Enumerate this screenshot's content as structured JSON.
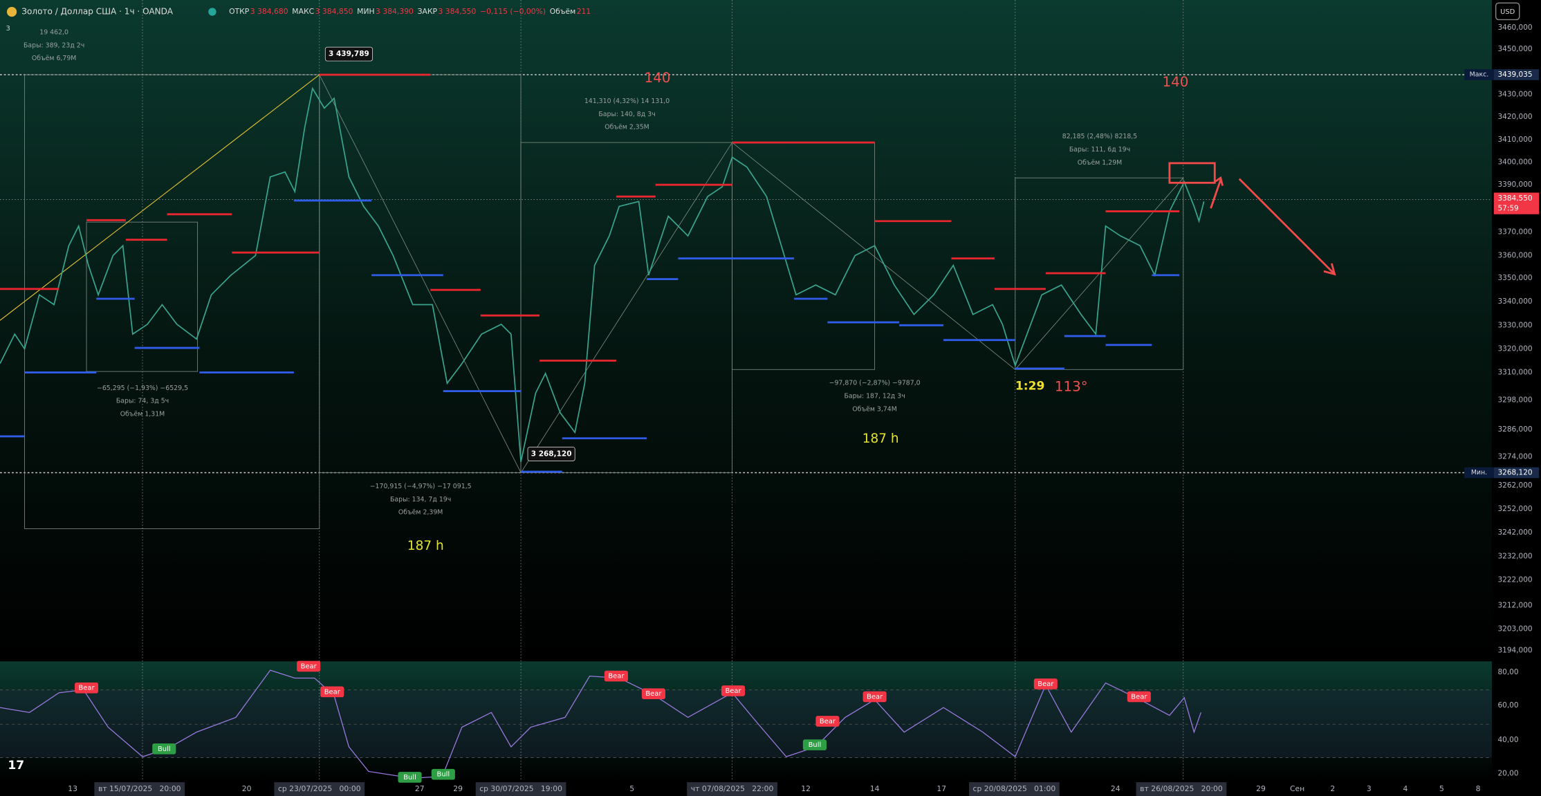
{
  "header": {
    "symbol": "Золото / Доллар США · 1ч · OANDA",
    "ohlc": [
      {
        "label": "ОТКР",
        "value": "3 384,680"
      },
      {
        "label": "МАКС",
        "value": "3 384,850"
      },
      {
        "label": "МИН",
        "value": "3 384,390"
      },
      {
        "label": "ЗАКР",
        "value": "3 384,550"
      }
    ],
    "change": "−0,115 (−0,00%)",
    "volume_label": "Объём",
    "volume": "211",
    "indicators_count": "3"
  },
  "currency": "USD",
  "price_axis": [
    "3460,000",
    "3450,000",
    "3430,000",
    "3420,000",
    "3410,000",
    "3400,000",
    "3390,000",
    "3370,000",
    "3360,000",
    "3350,000",
    "3340,000",
    "3330,000",
    "3320,000",
    "3310,000",
    "3298,000",
    "3286,000",
    "3274,000",
    "3262,000",
    "3252,000",
    "3242,000",
    "3232,000",
    "3222,000",
    "3212,000",
    "3203,000",
    "3194,000"
  ],
  "price_badges": {
    "max_label": "Макс.",
    "max": "3439,035",
    "min_label": "Мин.",
    "min": "3268,120",
    "last": "3384,550",
    "countdown": "57:59"
  },
  "rsi_axis": [
    "80,00",
    "60,00",
    "40,00",
    "20,00"
  ],
  "time_axis": [
    "13",
    "вт 15/07/2025   20:00",
    "20",
    "ср 23/07/2025   00:00",
    "27",
    "29",
    "ср 30/07/2025   19:00",
    "5",
    "чт 07/08/2025   22:00",
    "12",
    "14",
    "17",
    "ср 20/08/2025   01:00",
    "24",
    "вт 26/08/2025   20:00",
    "29",
    "Сен",
    "2",
    "3",
    "4",
    "5",
    "8"
  ],
  "price_callouts": [
    "3 439,789",
    "3 268,120"
  ],
  "measurements": [
    [
      "19 462,0",
      "Бары: 389, 23д 2ч",
      "Объём 6,79M"
    ],
    [
      "−65,295 (−1,93%) −6529,5",
      "Бары: 74, 3д 5ч",
      "Объём 1,31M"
    ],
    [
      "−170,915 (−4,97%) −17 091,5",
      "Бары: 134, 7д 19ч",
      "Объём 2,39M"
    ],
    [
      "141,310 (4,32%) 14 131,0",
      "Бары: 140, 8д 3ч",
      "Объём 2,35M"
    ],
    [
      "−97,870 (−2,87%) −9787,0",
      "Бары: 187, 12д 3ч",
      "Объём 3,74M"
    ],
    [
      "82,185 (2,48%) 8218,5",
      "Бары: 111, 6д 19ч",
      "Объём 1,29M"
    ]
  ],
  "notes": [
    "140",
    "140",
    "187 h",
    "187 h",
    "1:29",
    "113°"
  ],
  "rsi_signals": [
    "Bear",
    "Bear",
    "Bear",
    "Bear",
    "Bear",
    "Bear",
    "Bear",
    "Bear",
    "Bear",
    "Bear",
    "Bull",
    "Bull",
    "Bull",
    "Bull"
  ]
}
